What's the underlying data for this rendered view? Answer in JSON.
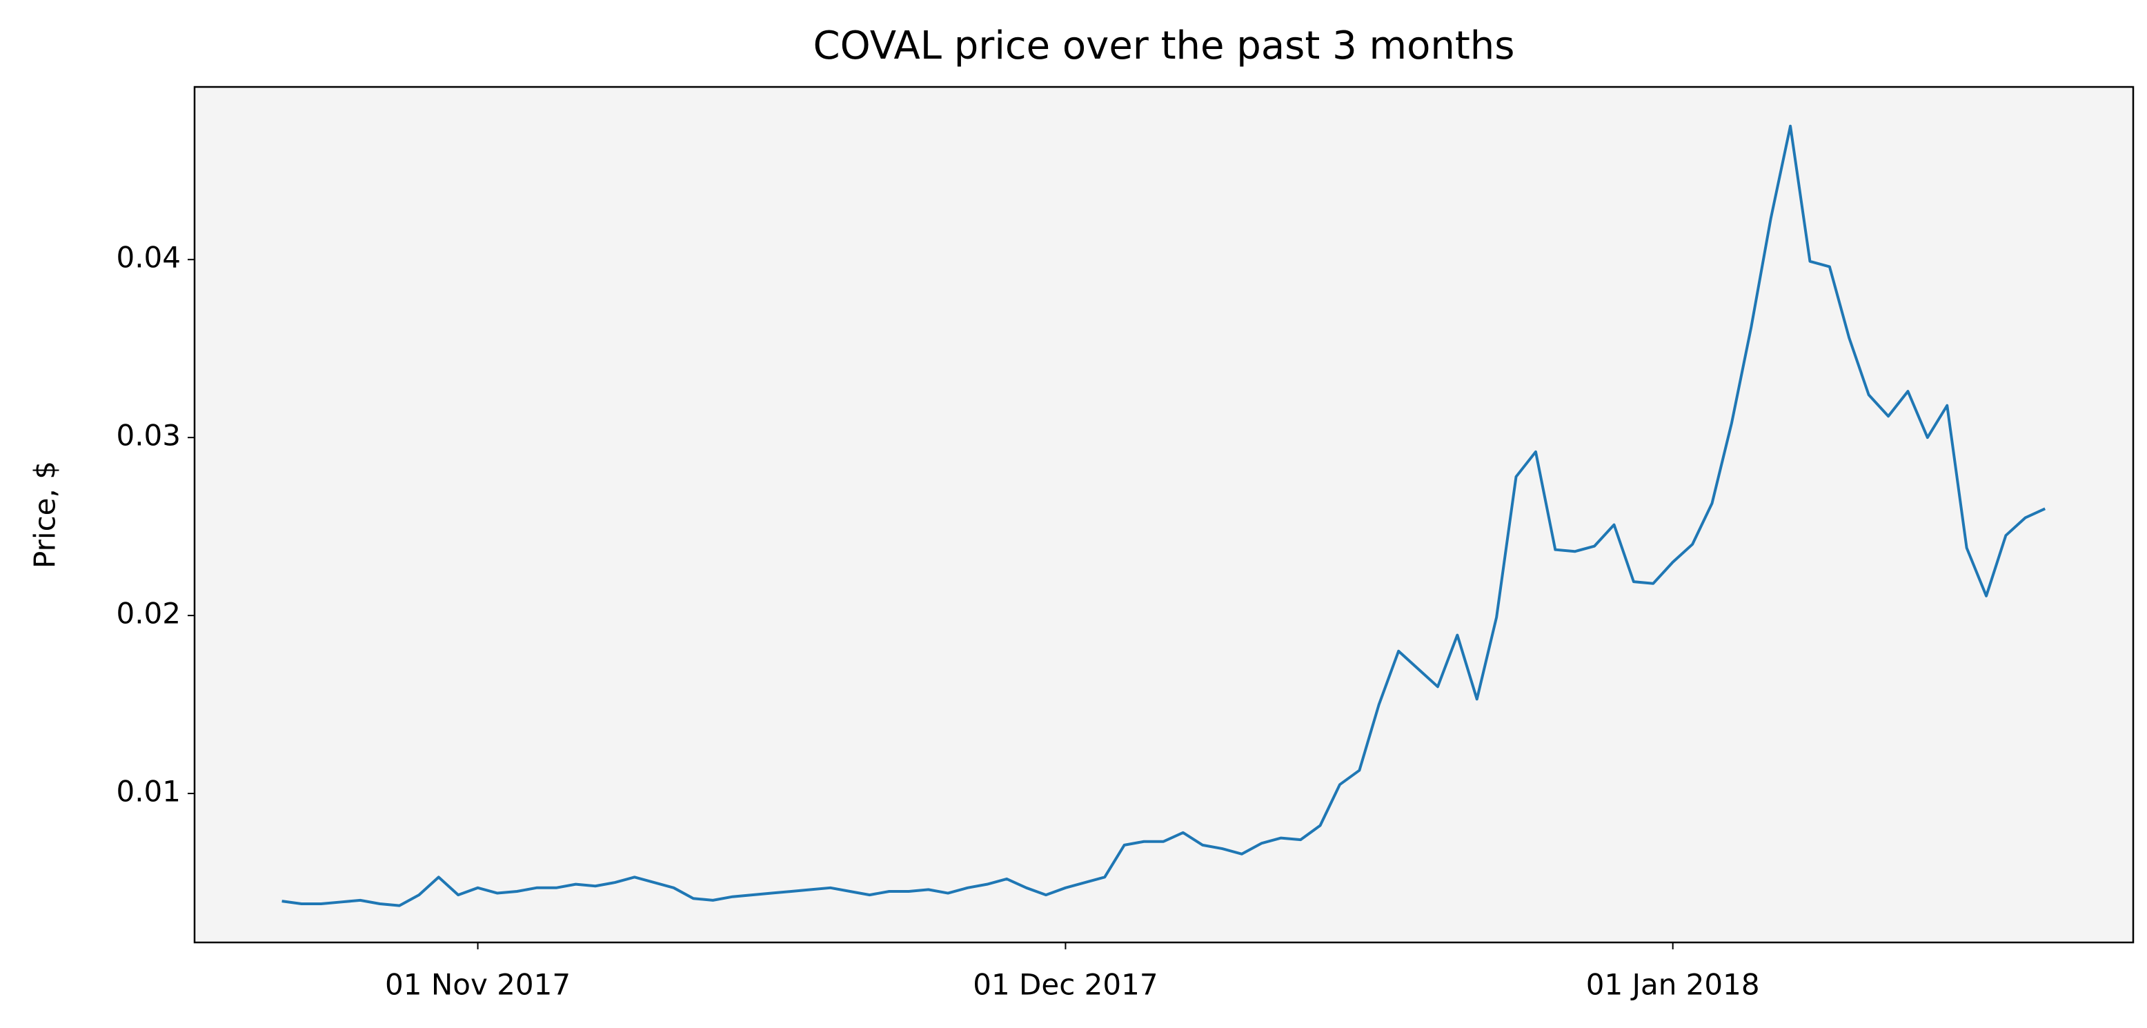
{
  "chart_data": {
    "type": "line",
    "title": "COVAL price over the past 3 months",
    "y_label": "Price, $",
    "x": [
      "2017-10-22",
      "2017-10-23",
      "2017-10-24",
      "2017-10-25",
      "2017-10-26",
      "2017-10-27",
      "2017-10-28",
      "2017-10-29",
      "2017-10-30",
      "2017-10-31",
      "2017-11-01",
      "2017-11-02",
      "2017-11-03",
      "2017-11-04",
      "2017-11-05",
      "2017-11-06",
      "2017-11-07",
      "2017-11-08",
      "2017-11-09",
      "2017-11-10",
      "2017-11-11",
      "2017-11-12",
      "2017-11-13",
      "2017-11-14",
      "2017-11-15",
      "2017-11-16",
      "2017-11-17",
      "2017-11-18",
      "2017-11-19",
      "2017-11-20",
      "2017-11-21",
      "2017-11-22",
      "2017-11-23",
      "2017-11-24",
      "2017-11-25",
      "2017-11-26",
      "2017-11-27",
      "2017-11-28",
      "2017-11-29",
      "2017-11-30",
      "2017-12-01",
      "2017-12-02",
      "2017-12-03",
      "2017-12-04",
      "2017-12-05",
      "2017-12-06",
      "2017-12-07",
      "2017-12-08",
      "2017-12-09",
      "2017-12-10",
      "2017-12-11",
      "2017-12-12",
      "2017-12-13",
      "2017-12-14",
      "2017-12-15",
      "2017-12-16",
      "2017-12-17",
      "2017-12-18",
      "2017-12-19",
      "2017-12-20",
      "2017-12-21",
      "2017-12-22",
      "2017-12-23",
      "2017-12-24",
      "2017-12-25",
      "2017-12-26",
      "2017-12-27",
      "2017-12-28",
      "2017-12-29",
      "2017-12-30",
      "2017-12-31",
      "2018-01-01",
      "2018-01-02",
      "2018-01-03",
      "2018-01-04",
      "2018-01-05",
      "2018-01-06",
      "2018-01-07",
      "2018-01-08",
      "2018-01-09",
      "2018-01-10",
      "2018-01-11",
      "2018-01-12",
      "2018-01-13",
      "2018-01-14",
      "2018-01-15",
      "2018-01-16",
      "2018-01-17",
      "2018-01-18",
      "2018-01-19",
      "2018-01-20"
    ],
    "series": [
      {
        "name": "COVAL",
        "color": "#1f77b4",
        "values": [
          0.00395,
          0.0038,
          0.0038,
          0.0039,
          0.004,
          0.0038,
          0.0037,
          0.0043,
          0.0053,
          0.0043,
          0.0047,
          0.0044,
          0.0045,
          0.0047,
          0.0047,
          0.0049,
          0.0048,
          0.005,
          0.0053,
          0.005,
          0.0047,
          0.0041,
          0.004,
          0.0042,
          0.0043,
          0.0044,
          0.0045,
          0.0046,
          0.0047,
          0.0045,
          0.0043,
          0.0045,
          0.0045,
          0.0046,
          0.0044,
          0.0047,
          0.0049,
          0.0052,
          0.0047,
          0.0043,
          0.0047,
          0.005,
          0.0053,
          0.0071,
          0.0073,
          0.0073,
          0.0078,
          0.0071,
          0.0069,
          0.0066,
          0.0072,
          0.0075,
          0.0074,
          0.0082,
          0.0105,
          0.0113,
          0.015,
          0.018,
          0.017,
          0.016,
          0.0189,
          0.0153,
          0.0199,
          0.0278,
          0.0292,
          0.0237,
          0.0236,
          0.0239,
          0.0251,
          0.0219,
          0.0218,
          0.023,
          0.024,
          0.0263,
          0.0308,
          0.0362,
          0.0423,
          0.0475,
          0.0399,
          0.0396,
          0.0356,
          0.0324,
          0.0312,
          0.0326,
          0.03,
          0.0318,
          0.0238,
          0.0211,
          0.0245,
          0.0255,
          0.026
        ]
      }
    ],
    "xlim": [
      "2017-10-17T13:00",
      "2018-01-24T12:00"
    ],
    "xticks": [
      {
        "value": "2017-11-01",
        "label": "01 Nov 2017"
      },
      {
        "value": "2017-12-01",
        "label": "01 Dec 2017"
      },
      {
        "value": "2018-01-01",
        "label": "01 Jan 2018"
      }
    ],
    "ylim": [
      0.00163,
      0.0497
    ],
    "yticks": [
      0.01,
      0.02,
      0.03,
      0.04
    ],
    "background": "#f4f4f4"
  }
}
